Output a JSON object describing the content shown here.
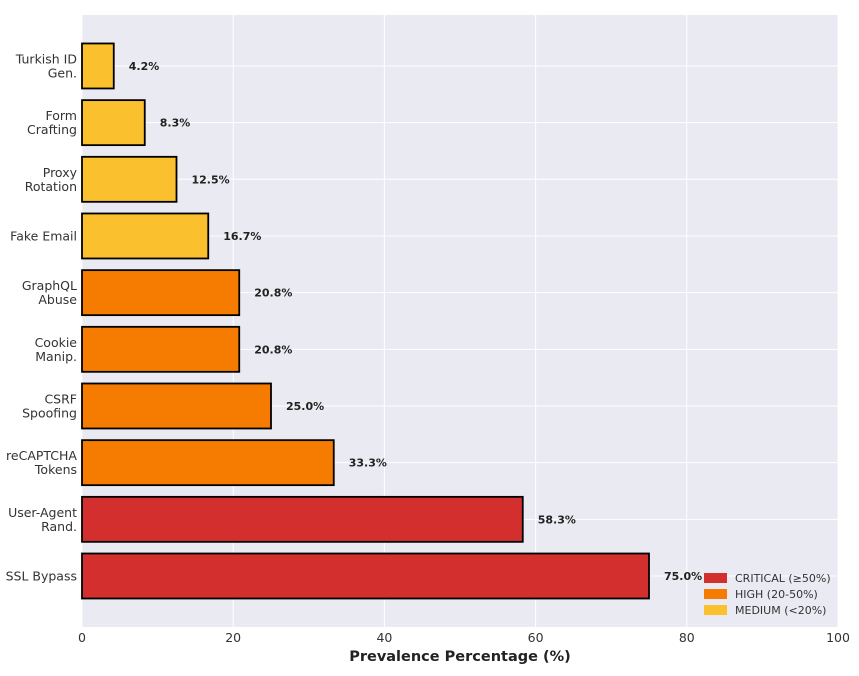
{
  "chart_data": {
    "type": "bar",
    "orientation": "horizontal",
    "title": "",
    "xlabel": "Prevalence Percentage (%)",
    "ylabel": "",
    "xlim": [
      0,
      100
    ],
    "xticks": [
      "0",
      "20",
      "40",
      "60",
      "80",
      "100"
    ],
    "grid": true,
    "categories": [
      "SSL Bypass",
      "User-Agent Rand.",
      "reCAPTCHA Tokens",
      "CSRF Spoofing",
      "Cookie Manip.",
      "GraphQL Abuse",
      "Fake Email",
      "Proxy Rotation",
      "Form Crafting",
      "Turkish ID Gen."
    ],
    "category_lines": [
      [
        "SSL Bypass"
      ],
      [
        "User-Agent",
        "Rand."
      ],
      [
        "reCAPTCHA",
        "Tokens"
      ],
      [
        "CSRF",
        "Spoofing"
      ],
      [
        "Cookie",
        "Manip."
      ],
      [
        "GraphQL",
        "Abuse"
      ],
      [
        "Fake Email"
      ],
      [
        "Proxy",
        "Rotation"
      ],
      [
        "Form",
        "Crafting"
      ],
      [
        "Turkish ID",
        "Gen."
      ]
    ],
    "values": [
      75.0,
      58.3,
      33.3,
      25.0,
      20.8,
      20.8,
      16.7,
      12.5,
      8.3,
      4.2
    ],
    "data_labels": [
      "75.0%",
      "58.3%",
      "33.3%",
      "25.0%",
      "20.8%",
      "20.8%",
      "16.7%",
      "12.5%",
      "8.3%",
      "4.2%"
    ],
    "severity": [
      "CRITICAL",
      "CRITICAL",
      "HIGH",
      "HIGH",
      "HIGH",
      "HIGH",
      "MEDIUM",
      "MEDIUM",
      "MEDIUM",
      "MEDIUM"
    ],
    "legend": {
      "placement": "lower-right",
      "entries": [
        {
          "key": "CRITICAL",
          "label": "CRITICAL (≥50%)",
          "color": "#d32f2f"
        },
        {
          "key": "HIGH",
          "label": "HIGH (20-50%)",
          "color": "#f57c00"
        },
        {
          "key": "MEDIUM",
          "label": "MEDIUM (<20%)",
          "color": "#fbc02d"
        }
      ]
    },
    "colors": {
      "background": "#eaeaf2",
      "grid": "#ffffff",
      "edge": "#000000"
    }
  }
}
